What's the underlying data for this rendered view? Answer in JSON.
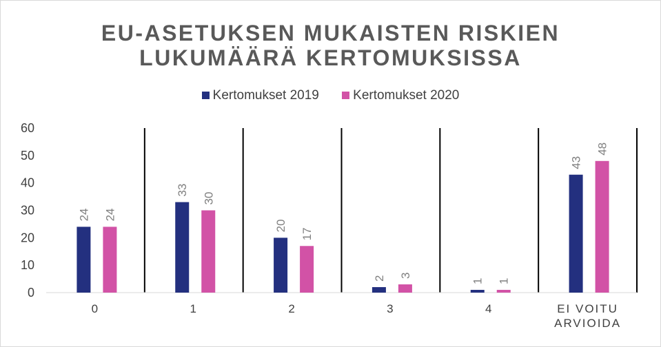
{
  "chart_data": {
    "type": "bar",
    "title_lines": [
      "EU-ASETUKSEN MUKAISTEN RISKIEN",
      "LUKUMÄÄRÄ KERTOMUKSISSA"
    ],
    "categories": [
      "0",
      "1",
      "2",
      "3",
      "4",
      [
        "EI VOITU",
        "ARVIOIDA"
      ]
    ],
    "series": [
      {
        "name": "Kertomukset 2019",
        "color": "#23307f",
        "values": [
          24,
          33,
          20,
          2,
          1,
          43
        ]
      },
      {
        "name": "Kertomukset 2020",
        "color": "#d252a6",
        "values": [
          24,
          30,
          17,
          3,
          1,
          48
        ]
      }
    ],
    "ylim": [
      0,
      60
    ],
    "yticks": [
      0,
      10,
      20,
      30,
      40,
      50,
      60
    ],
    "legend": "top-center",
    "grid": false,
    "category_separators": true
  }
}
